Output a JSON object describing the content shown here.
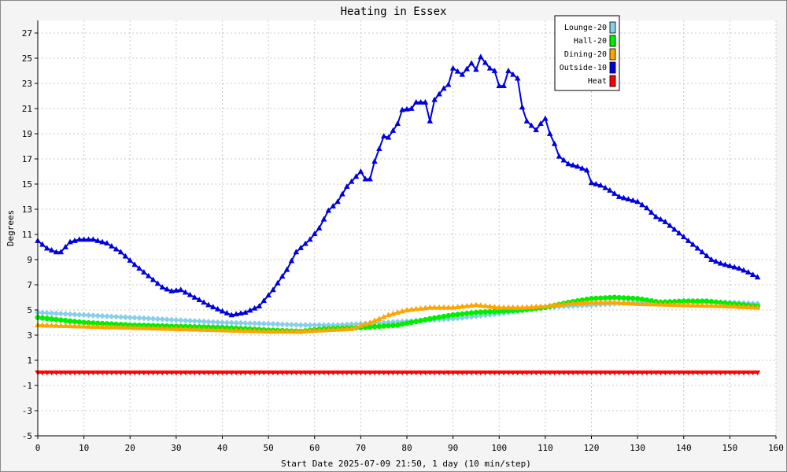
{
  "chart_data": {
    "type": "line",
    "title": "Heating in Essex",
    "xlabel": "Start Date 2025-07-09 21:50, 1 day (10 min/step)",
    "ylabel": "Degrees",
    "xlim": [
      0,
      160
    ],
    "ylim": [
      -5,
      28
    ],
    "xticks": [
      0,
      10,
      20,
      30,
      40,
      50,
      60,
      70,
      80,
      90,
      100,
      110,
      120,
      130,
      140,
      150,
      160
    ],
    "yticks": [
      -5,
      -3,
      -1,
      1,
      3,
      5,
      7,
      9,
      11,
      13,
      15,
      17,
      19,
      21,
      23,
      25,
      27
    ],
    "grid": true,
    "legend_position": "top-right",
    "series": [
      {
        "name": "Lounge-20",
        "color": "#87ceeb",
        "marker": "diamond",
        "points": [
          [
            0,
            4.8
          ],
          [
            10,
            4.6
          ],
          [
            20,
            4.4
          ],
          [
            30,
            4.2
          ],
          [
            40,
            4.0
          ],
          [
            50,
            3.9
          ],
          [
            57,
            3.8
          ],
          [
            65,
            3.8
          ],
          [
            70,
            3.9
          ],
          [
            80,
            4.1
          ],
          [
            90,
            4.3
          ],
          [
            100,
            4.7
          ],
          [
            110,
            5.2
          ],
          [
            120,
            5.4
          ],
          [
            130,
            5.6
          ],
          [
            140,
            5.7
          ],
          [
            150,
            5.6
          ],
          [
            156,
            5.5
          ]
        ]
      },
      {
        "name": "Hall-20",
        "color": "#00ee00",
        "marker": "circle",
        "points": [
          [
            0,
            4.4
          ],
          [
            10,
            4.0
          ],
          [
            20,
            3.8
          ],
          [
            30,
            3.7
          ],
          [
            40,
            3.6
          ],
          [
            50,
            3.4
          ],
          [
            57,
            3.3
          ],
          [
            62,
            3.5
          ],
          [
            70,
            3.6
          ],
          [
            78,
            3.8
          ],
          [
            85,
            4.3
          ],
          [
            90,
            4.6
          ],
          [
            95,
            4.8
          ],
          [
            100,
            4.9
          ],
          [
            105,
            5.0
          ],
          [
            110,
            5.2
          ],
          [
            115,
            5.6
          ],
          [
            120,
            5.9
          ],
          [
            125,
            6.0
          ],
          [
            130,
            5.9
          ],
          [
            135,
            5.6
          ],
          [
            140,
            5.7
          ],
          [
            145,
            5.7
          ],
          [
            150,
            5.5
          ],
          [
            156,
            5.3
          ]
        ]
      },
      {
        "name": "Dining-20",
        "color": "#ffa500",
        "marker": "triangle-up",
        "points": [
          [
            0,
            3.8
          ],
          [
            10,
            3.7
          ],
          [
            20,
            3.6
          ],
          [
            30,
            3.5
          ],
          [
            40,
            3.4
          ],
          [
            50,
            3.3
          ],
          [
            57,
            3.3
          ],
          [
            62,
            3.4
          ],
          [
            68,
            3.5
          ],
          [
            72,
            4.0
          ],
          [
            76,
            4.6
          ],
          [
            80,
            5.0
          ],
          [
            85,
            5.2
          ],
          [
            90,
            5.2
          ],
          [
            95,
            5.4
          ],
          [
            100,
            5.2
          ],
          [
            105,
            5.2
          ],
          [
            110,
            5.3
          ],
          [
            115,
            5.5
          ],
          [
            120,
            5.6
          ],
          [
            125,
            5.6
          ],
          [
            130,
            5.5
          ],
          [
            140,
            5.4
          ],
          [
            150,
            5.3
          ],
          [
            156,
            5.2
          ]
        ]
      },
      {
        "name": "Outside-10",
        "color": "#0000dd",
        "marker": "triangle-up",
        "points": [
          [
            0,
            10.5
          ],
          [
            2,
            9.9
          ],
          [
            4,
            9.6
          ],
          [
            5,
            9.6
          ],
          [
            7,
            10.4
          ],
          [
            9,
            10.6
          ],
          [
            12,
            10.6
          ],
          [
            15,
            10.3
          ],
          [
            18,
            9.6
          ],
          [
            21,
            8.6
          ],
          [
            24,
            7.7
          ],
          [
            27,
            6.8
          ],
          [
            29,
            6.5
          ],
          [
            31,
            6.6
          ],
          [
            34,
            6.0
          ],
          [
            37,
            5.4
          ],
          [
            40,
            4.9
          ],
          [
            42,
            4.6
          ],
          [
            45,
            4.8
          ],
          [
            48,
            5.3
          ],
          [
            51,
            6.6
          ],
          [
            54,
            8.2
          ],
          [
            56,
            9.6
          ],
          [
            59,
            10.6
          ],
          [
            61,
            11.5
          ],
          [
            63,
            12.9
          ],
          [
            65,
            13.6
          ],
          [
            67,
            14.8
          ],
          [
            69,
            15.6
          ],
          [
            70,
            16.0
          ],
          [
            71,
            15.4
          ],
          [
            72,
            15.4
          ],
          [
            73,
            16.8
          ],
          [
            75,
            18.8
          ],
          [
            76,
            18.7
          ],
          [
            78,
            19.8
          ],
          [
            79,
            20.9
          ],
          [
            81,
            21.0
          ],
          [
            82,
            21.5
          ],
          [
            84,
            21.5
          ],
          [
            85,
            20.0
          ],
          [
            86,
            21.7
          ],
          [
            88,
            22.6
          ],
          [
            89,
            22.9
          ],
          [
            90,
            24.2
          ],
          [
            92,
            23.7
          ],
          [
            94,
            24.6
          ],
          [
            95,
            24.1
          ],
          [
            96,
            25.1
          ],
          [
            98,
            24.2
          ],
          [
            99,
            24.0
          ],
          [
            100,
            22.8
          ],
          [
            101,
            22.8
          ],
          [
            102,
            24.0
          ],
          [
            104,
            23.4
          ],
          [
            105,
            21.1
          ],
          [
            106,
            20.0
          ],
          [
            108,
            19.3
          ],
          [
            109,
            19.8
          ],
          [
            110,
            20.2
          ],
          [
            111,
            19.0
          ],
          [
            112,
            18.2
          ],
          [
            113,
            17.2
          ],
          [
            115,
            16.6
          ],
          [
            117,
            16.4
          ],
          [
            119,
            16.1
          ],
          [
            120,
            15.1
          ],
          [
            122,
            14.9
          ],
          [
            124,
            14.5
          ],
          [
            126,
            14.0
          ],
          [
            128,
            13.8
          ],
          [
            130,
            13.6
          ],
          [
            132,
            13.1
          ],
          [
            134,
            12.4
          ],
          [
            136,
            12.0
          ],
          [
            138,
            11.4
          ],
          [
            140,
            10.8
          ],
          [
            142,
            10.2
          ],
          [
            144,
            9.6
          ],
          [
            146,
            9.0
          ],
          [
            148,
            8.7
          ],
          [
            150,
            8.5
          ],
          [
            152,
            8.3
          ],
          [
            154,
            8.0
          ],
          [
            156,
            7.6
          ]
        ]
      },
      {
        "name": "Heat",
        "color": "#ff0000",
        "marker": "triangle-down",
        "points": [
          [
            0,
            0.0
          ],
          [
            156,
            0.0
          ]
        ]
      }
    ]
  }
}
